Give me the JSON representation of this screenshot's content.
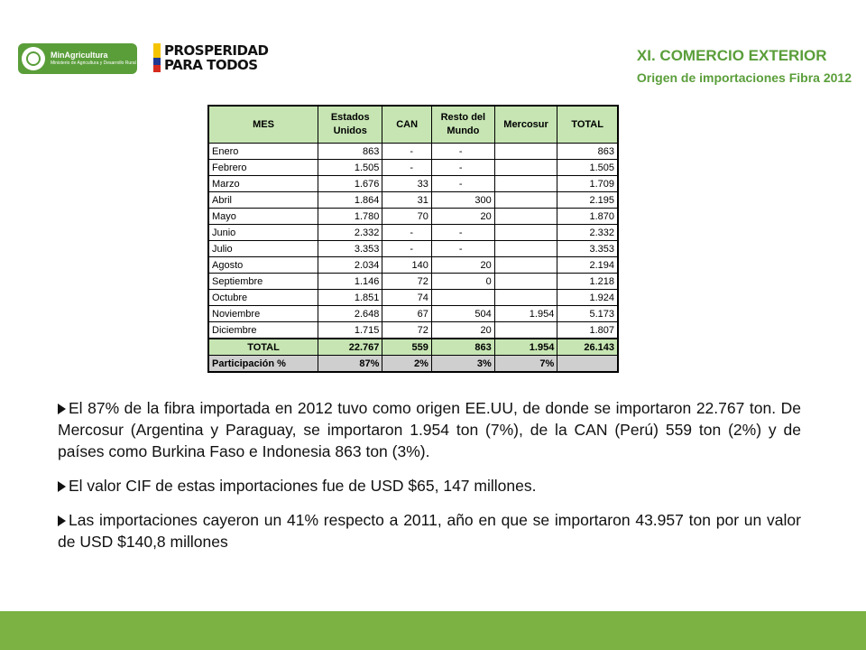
{
  "header": {
    "logo1_name": "MinAgricultura",
    "logo1_sub": "Ministerio de Agricultura y Desarrollo Rural",
    "logo2_line1": "PROSPERIDAD",
    "logo2_line2": "PARA TODOS",
    "title": "XI. COMERCIO EXTERIOR",
    "subtitle": "Origen de importaciones Fibra 2012"
  },
  "table": {
    "headers": [
      "MES",
      "Estados Unidos",
      "CAN",
      "Resto del Mundo",
      "Mercosur",
      "TOTAL"
    ],
    "rows": [
      [
        "Enero",
        "863",
        "-",
        "-",
        "",
        "863"
      ],
      [
        "Febrero",
        "1.505",
        "-",
        "-",
        "",
        "1.505"
      ],
      [
        "Marzo",
        "1.676",
        "33",
        "-",
        "",
        "1.709"
      ],
      [
        "Abril",
        "1.864",
        "31",
        "300",
        "",
        "2.195"
      ],
      [
        "Mayo",
        "1.780",
        "70",
        "20",
        "",
        "1.870"
      ],
      [
        "Junio",
        "2.332",
        "-",
        "-",
        "",
        "2.332"
      ],
      [
        "Julio",
        "3.353",
        "-",
        "-",
        "",
        "3.353"
      ],
      [
        "Agosto",
        "2.034",
        "140",
        "20",
        "",
        "2.194"
      ],
      [
        "Septiembre",
        "1.146",
        "72",
        "0",
        "",
        "1.218"
      ],
      [
        "Octubre",
        "1.851",
        "74",
        "",
        "",
        "1.924"
      ],
      [
        "Noviembre",
        "2.648",
        "67",
        "504",
        "1.954",
        "5.173"
      ],
      [
        "Diciembre",
        "1.715",
        "72",
        "20",
        "",
        "1.807"
      ]
    ],
    "total": [
      "TOTAL",
      "22.767",
      "559",
      "863",
      "1.954",
      "26.143"
    ],
    "participation": [
      "Participación %",
      "87%",
      "2%",
      "3%",
      "7%",
      ""
    ]
  },
  "bullets": [
    "El 87% de la fibra importada en 2012 tuvo como origen EE.UU, de donde se importaron 22.767 ton. De Mercosur (Argentina y Paraguay, se importaron 1.954 ton (7%), de la CAN (Perú) 559 ton (2%) y de países como Burkina Faso e Indonesia 863 ton (3%).",
    "El valor CIF de estas importaciones fue de USD $65, 147 millones.",
    "Las importaciones cayeron un 41% respecto a 2011, año en que se importaron 43.957 ton por un valor de USD $140,8 millones"
  ],
  "colors": {
    "accent_green": "#5a9e3a",
    "header_fill": "#c6e5b3",
    "footer_bar": "#7bb243"
  }
}
